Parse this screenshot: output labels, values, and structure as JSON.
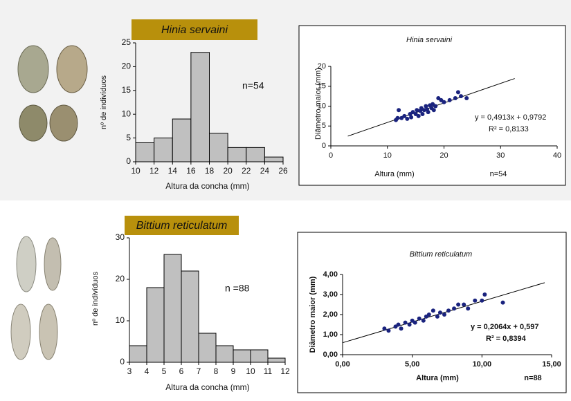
{
  "chart_data": [
    {
      "type": "histogram",
      "title": "Hinia servaini",
      "xlabel": "Altura da concha (mm)",
      "ylabel": "nº de indivíduos",
      "bins": [
        10,
        12,
        14,
        16,
        18,
        20,
        22,
        24,
        26
      ],
      "values": [
        4,
        5,
        9,
        23,
        6,
        3,
        3,
        1
      ],
      "color": "#c0c0c0",
      "xlim": [
        10,
        26
      ],
      "xticks": [
        10,
        12,
        14,
        16,
        18,
        20,
        22,
        24,
        26
      ],
      "ylim": [
        0,
        25
      ],
      "yticks": [
        0,
        5,
        10,
        15,
        20,
        25
      ],
      "annotations": [
        "n=54"
      ]
    },
    {
      "type": "scatter",
      "title": "Hinia servaini",
      "xlabel": "Altura (mm)",
      "ylabel": "Diâmetro maior (mm)",
      "color": "#1a237e",
      "x": [
        11.5,
        11.8,
        12,
        12.5,
        13,
        13.5,
        14,
        14.2,
        14.5,
        15,
        15.2,
        15.5,
        15.8,
        16,
        16.2,
        16.5,
        16.8,
        17,
        17.2,
        17.5,
        17.8,
        18,
        18.2,
        18.5,
        19,
        19.5,
        20,
        21,
        22,
        22.5,
        23,
        24
      ],
      "values": [
        6.5,
        7,
        9,
        7,
        7.5,
        6.8,
        8,
        7.2,
        8.5,
        8,
        9,
        7.5,
        8.8,
        9.5,
        8,
        9,
        10,
        9.2,
        8.5,
        10.2,
        9.5,
        10.5,
        9,
        10,
        12,
        11.5,
        11,
        11.5,
        12,
        13.5,
        12.5,
        12
      ],
      "trendline": {
        "x": [
          3,
          32.5
        ],
        "values": [
          2.45,
          16.95
        ]
      },
      "xlim": [
        0,
        40
      ],
      "xticks": [
        0,
        10,
        20,
        30,
        40
      ],
      "ylim": [
        0,
        20
      ],
      "yticks": [
        0,
        5,
        10,
        15,
        20
      ],
      "annotations": [
        "n=54",
        "y = 0,4913x + 0,9792",
        "R² = 0,8133"
      ]
    },
    {
      "type": "histogram",
      "title": "Bittium reticulatum",
      "xlabel": "Altura da concha (mm)",
      "ylabel": "nº de indivíduos",
      "bins": [
        3,
        4,
        5,
        6,
        7,
        8,
        9,
        10,
        11,
        12
      ],
      "values": [
        4,
        18,
        26,
        22,
        7,
        4,
        3,
        3,
        1
      ],
      "color": "#c0c0c0",
      "xlim": [
        3,
        12
      ],
      "xticks": [
        3,
        4,
        5,
        6,
        7,
        8,
        9,
        10,
        11,
        12
      ],
      "ylim": [
        0,
        30
      ],
      "yticks": [
        0,
        10,
        20,
        30
      ],
      "annotations": [
        "n =88"
      ]
    },
    {
      "type": "scatter",
      "title": "Bittium reticulatum",
      "xlabel": "Altura (mm)",
      "ylabel": "Diâmetro maior (mm)",
      "color": "#1a237e",
      "x": [
        3,
        3.3,
        3.8,
        4,
        4.2,
        4.5,
        4.8,
        5,
        5.2,
        5.5,
        5.8,
        6,
        6.2,
        6.5,
        6.8,
        7,
        7.3,
        7.6,
        8,
        8.3,
        8.7,
        9,
        9.5,
        10,
        10.2,
        11.5
      ],
      "values": [
        1.3,
        1.2,
        1.4,
        1.5,
        1.3,
        1.6,
        1.5,
        1.7,
        1.6,
        1.8,
        1.7,
        1.9,
        2.0,
        2.2,
        1.9,
        2.1,
        2.0,
        2.2,
        2.3,
        2.5,
        2.5,
        2.3,
        2.7,
        2.7,
        3.0,
        2.6
      ],
      "trendline": {
        "x": [
          0,
          14.5
        ],
        "values": [
          0.597,
          3.59
        ]
      },
      "xlim": [
        0,
        15
      ],
      "xticks": [
        {
          "value": 0,
          "label": "0,00"
        },
        {
          "value": 5,
          "label": "5,00"
        },
        {
          "value": 10,
          "label": "10,00"
        },
        {
          "value": 15,
          "label": "15,00"
        }
      ],
      "ylim": [
        0,
        4
      ],
      "yticks": [
        {
          "value": 0,
          "label": "0,00"
        },
        {
          "value": 1,
          "label": "1,00"
        },
        {
          "value": 2,
          "label": "2,00"
        },
        {
          "value": 3,
          "label": "3,00"
        },
        {
          "value": 4,
          "label": "4,00"
        }
      ],
      "annotations": [
        "n=88",
        "y = 0,2064x + 0,597",
        "R² = 0,8394"
      ]
    }
  ]
}
